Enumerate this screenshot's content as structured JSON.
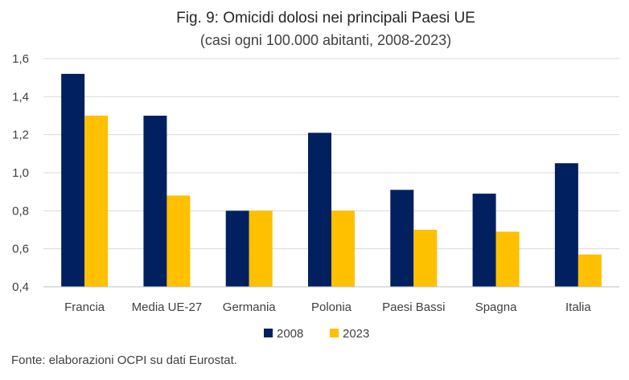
{
  "chart_data": {
    "type": "bar",
    "title": "Fig. 9: Omicidi dolosi nei principali Paesi UE",
    "subtitle": "(casi ogni 100.000 abitanti, 2008-2023)",
    "categories": [
      "Francia",
      "Media UE-27",
      "Germania",
      "Polonia",
      "Paesi Bassi",
      "Spagna",
      "Italia"
    ],
    "series": [
      {
        "name": "2008",
        "color": "#002060",
        "values": [
          1.52,
          1.3,
          0.8,
          1.21,
          0.91,
          0.89,
          1.05
        ]
      },
      {
        "name": "2023",
        "color": "#FFC000",
        "values": [
          1.3,
          0.88,
          0.8,
          0.8,
          0.7,
          0.69,
          0.57
        ]
      }
    ],
    "ylim": [
      0.4,
      1.6
    ],
    "yticks": [
      "0,4",
      "0,6",
      "0,8",
      "1,0",
      "1,2",
      "1,4",
      "1,6"
    ],
    "ytick_values": [
      0.4,
      0.6,
      0.8,
      1.0,
      1.2,
      1.4,
      1.6
    ],
    "grid": true,
    "legend_position": "bottom-center",
    "xlabel": "",
    "ylabel": ""
  },
  "source_note": "Fonte: elaborazioni OCPI su dati Eurostat.",
  "colors": {
    "gridline": "#D9D9D9",
    "axis": "#BFBFBF"
  }
}
